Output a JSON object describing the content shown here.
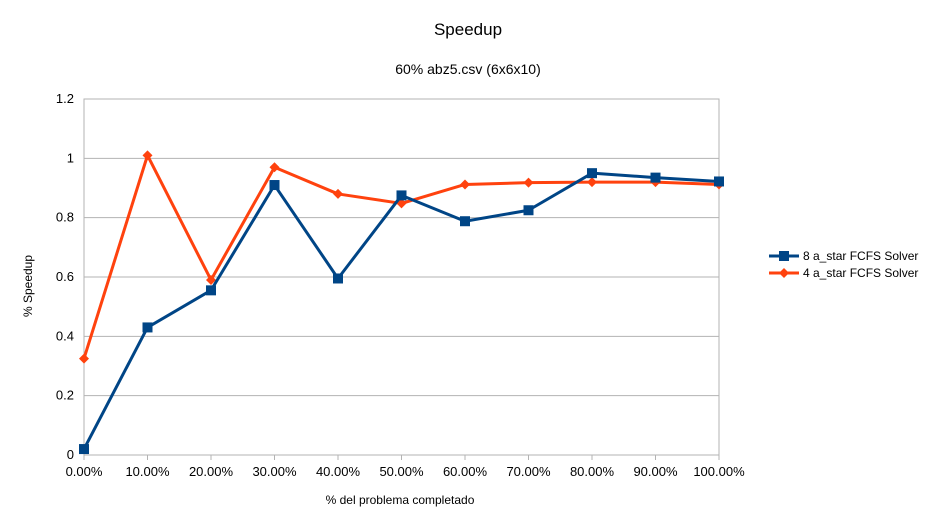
{
  "chart_data": {
    "type": "line",
    "title": "Speedup",
    "subtitle": "60% abz5.csv (6x6x10)",
    "xlabel": "% del problema completado",
    "ylabel": "% Speedup",
    "categories": [
      "0.00%",
      "10.00%",
      "20.00%",
      "30.00%",
      "40.00%",
      "50.00%",
      "60.00%",
      "70.00%",
      "80.00%",
      "90.00%",
      "100.00%"
    ],
    "y_ticks": [
      "0",
      "0.2",
      "0.4",
      "0.6",
      "0.8",
      "1",
      "1.2"
    ],
    "ylim": [
      0,
      1.2
    ],
    "grid": true,
    "legend_position": "right",
    "series": [
      {
        "name": "8 a_star FCFS Solver",
        "color": "#004586",
        "marker": "square",
        "values": [
          0.02,
          0.43,
          0.555,
          0.91,
          0.595,
          0.875,
          0.788,
          0.825,
          0.95,
          0.935,
          0.922
        ]
      },
      {
        "name": "4 a_star FCFS Solver",
        "color": "#ff420e",
        "marker": "diamond",
        "values": [
          0.325,
          1.01,
          0.59,
          0.97,
          0.88,
          0.848,
          0.912,
          0.918,
          0.92,
          0.92,
          0.912
        ]
      }
    ]
  }
}
